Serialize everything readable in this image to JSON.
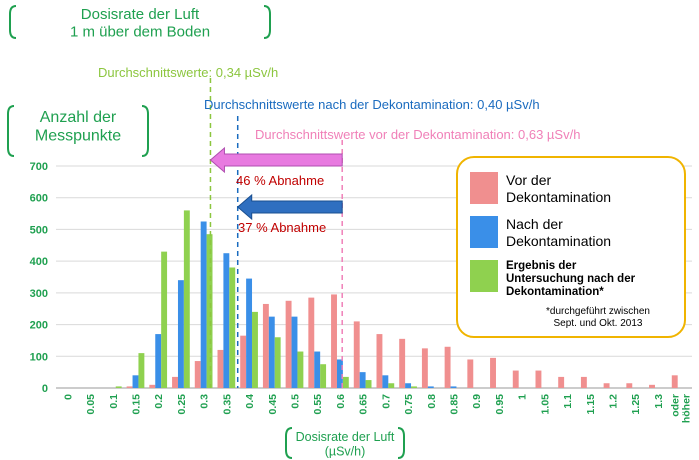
{
  "chart_data": {
    "type": "bar",
    "title": "Dosisrate der Luft\n1 m über dem Boden",
    "ylabel": "Anzahl der\nMesspunkte",
    "xlabel": "Dosisrate der Luft\n(µSv/h)",
    "ylim": [
      0,
      700
    ],
    "yticks": [
      0,
      100,
      200,
      300,
      400,
      500,
      600,
      700
    ],
    "grid": true,
    "legend_position": "right",
    "categories": [
      "0",
      "0.05",
      "0.1",
      "0.15",
      "0.2",
      "0.25",
      "0.3",
      "0.35",
      "0.4",
      "0.45",
      "0.5",
      "0.55",
      "0.6",
      "0.65",
      "0.7",
      "0.75",
      "0.8",
      "0.85",
      "0.9",
      "0.95",
      "1",
      "1.05",
      "1.1",
      "1.15",
      "1.2",
      "1.25",
      "1.3",
      "oder höher"
    ],
    "series": [
      {
        "name": "Vor der Dekontamination",
        "color": "#f08f8f",
        "values": [
          0,
          0,
          0,
          5,
          10,
          35,
          85,
          120,
          165,
          265,
          275,
          285,
          295,
          210,
          170,
          155,
          125,
          130,
          90,
          95,
          55,
          55,
          35,
          35,
          15,
          15,
          10,
          40
        ]
      },
      {
        "name": "Nach der Dekontamination",
        "color": "#3a8fe8",
        "values": [
          0,
          0,
          0,
          40,
          170,
          340,
          525,
          425,
          345,
          225,
          225,
          115,
          90,
          50,
          40,
          15,
          5,
          5,
          0,
          0,
          0,
          0,
          0,
          0,
          0,
          0,
          0,
          0
        ]
      },
      {
        "name": "Ergebnis der Untersuchung nach der Dekontamination*",
        "color": "#8fd14f",
        "values": [
          0,
          0,
          5,
          110,
          430,
          560,
          485,
          380,
          240,
          160,
          115,
          75,
          35,
          25,
          15,
          5,
          0,
          0,
          0,
          0,
          0,
          0,
          0,
          0,
          0,
          0,
          0,
          0
        ]
      }
    ],
    "annotations": [
      {
        "text": "Durchschnittswerte: 0,34 µSv/h",
        "color": "#8cc63f",
        "x": 0.34
      },
      {
        "text": "Durchschnittswerte nach der Dekontamination: 0,40 µSv/h",
        "color": "#1a6bbf",
        "x": 0.4
      },
      {
        "text": "Durchschnittswerte vor der Dekontamination: 0,63 µSv/h",
        "color": "#f080b8",
        "x": 0.63
      },
      {
        "text": "46 % Abnahme",
        "color": "#c00000"
      },
      {
        "text": "37 % Abnahme",
        "color": "#c00000"
      }
    ],
    "footnote": "*durchgeführt zwischen\nSept. und Okt. 2013"
  },
  "legend": {
    "item1": "Vor der\nDekontamination",
    "item2": "Nach der\nDekontamination",
    "item3": "Ergebnis der\nUntersuchung nach der\nDekontamination*",
    "footnote": "*durchgeführt zwischen\nSept. und Okt. 2013"
  },
  "colors": {
    "axis_label": "#1fa050",
    "tick_x": "#1fa050",
    "tick_y": "#1fa050"
  }
}
